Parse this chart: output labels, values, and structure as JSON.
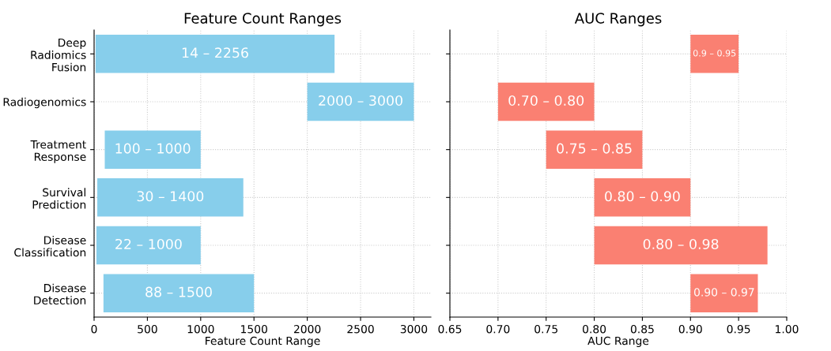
{
  "chart_data": [
    {
      "type": "bar",
      "orientation": "horizontal",
      "title": "Feature Count Ranges",
      "xlabel": "Feature Count Range",
      "categories": [
        "Deep\nRadiomics\nFusion",
        "Radiogenomics",
        "Treatment\nResponse",
        "Survival\nPrediction",
        "Disease\nClassification",
        "Disease\nDetection"
      ],
      "base": [
        14,
        2000,
        100,
        30,
        22,
        88
      ],
      "values": [
        2242,
        1000,
        900,
        1370,
        978,
        1412
      ],
      "annotations": [
        "14 – 2256",
        "2000 – 3000",
        "100 – 1000",
        "30 – 1400",
        "22 – 1000",
        "88 – 1500"
      ],
      "color": "#87ceeb",
      "xlim": [
        0,
        3160
      ],
      "xticks": [
        0,
        500,
        1000,
        1500,
        2000,
        2500,
        3000
      ],
      "grid": true
    },
    {
      "type": "bar",
      "orientation": "horizontal",
      "title": "AUC Ranges",
      "xlabel": "AUC Range",
      "categories": [
        null,
        null,
        null,
        null,
        null,
        null
      ],
      "base": [
        0.9,
        0.7,
        0.75,
        0.8,
        0.8,
        0.9
      ],
      "values": [
        0.05,
        0.1,
        0.1,
        0.1,
        0.18,
        0.07
      ],
      "annotations": [
        "0.9 – 0.95",
        "0.70 – 0.80",
        "0.75 – 0.85",
        "0.80 – 0.90",
        "0.80 – 0.98",
        "0.90 – 0.97"
      ],
      "color": "#fa8072",
      "xlim": [
        0.65,
        1.0
      ],
      "xticks": [
        {
          "value": 0.65,
          "label": "0.65"
        },
        {
          "value": 0.7,
          "label": "0.70"
        },
        {
          "value": 0.75,
          "label": "0.75"
        },
        {
          "value": 0.8,
          "label": "0.80"
        },
        {
          "value": 0.85,
          "label": "0.85"
        },
        {
          "value": 0.9,
          "label": "0.90"
        },
        {
          "value": 0.95,
          "label": "0.95"
        },
        {
          "value": 1.0,
          "label": "1.00"
        }
      ],
      "grid": true,
      "tick_labels": "x"
    }
  ]
}
